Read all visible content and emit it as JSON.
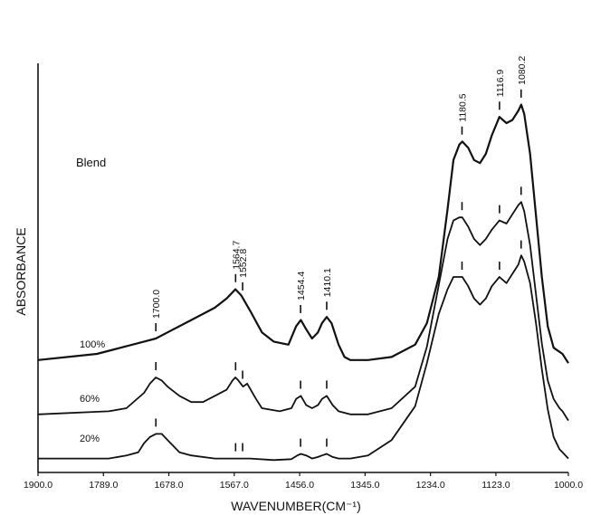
{
  "chart_data": {
    "type": "line",
    "title": "",
    "xlabel": "WAVENUMBER(CM⁻¹)",
    "ylabel": "ABSORBANCE",
    "xlim": [
      1900.0,
      1000.0
    ],
    "x_ticks": [
      "1900.0",
      "1789.0",
      "1678.0",
      "1567.0",
      "1456.0",
      "1345.0",
      "1234.0",
      "1123.0",
      "1000.0"
    ],
    "annotation": "Blend",
    "peak_labels": [
      "1700.0",
      "1564.7",
      "1552.8",
      "1454.4",
      "1410.1",
      "1180.5",
      "1116.9",
      "1080.2"
    ],
    "series": [
      {
        "name": "100%",
        "x": [
          1900,
          1800,
          1760,
          1720,
          1700,
          1680,
          1640,
          1600,
          1580,
          1570,
          1565,
          1555,
          1540,
          1520,
          1500,
          1475,
          1462,
          1454,
          1445,
          1435,
          1425,
          1418,
          1410,
          1402,
          1390,
          1380,
          1370,
          1340,
          1300,
          1260,
          1240,
          1220,
          1205,
          1195,
          1185,
          1180,
          1170,
          1160,
          1150,
          1140,
          1130,
          1117,
          1105,
          1095,
          1085,
          1080,
          1075,
          1065,
          1055,
          1045,
          1035,
          1025,
          1010,
          1000
        ],
        "y": [
          0.03,
          0.05,
          0.07,
          0.09,
          0.1,
          0.12,
          0.16,
          0.2,
          0.23,
          0.25,
          0.26,
          0.24,
          0.19,
          0.12,
          0.09,
          0.08,
          0.14,
          0.16,
          0.13,
          0.1,
          0.12,
          0.15,
          0.17,
          0.15,
          0.08,
          0.04,
          0.03,
          0.03,
          0.04,
          0.08,
          0.15,
          0.3,
          0.52,
          0.68,
          0.73,
          0.74,
          0.72,
          0.68,
          0.67,
          0.7,
          0.76,
          0.82,
          0.8,
          0.81,
          0.84,
          0.86,
          0.83,
          0.7,
          0.5,
          0.3,
          0.14,
          0.07,
          0.05,
          0.02
        ]
      },
      {
        "name": "60%",
        "x": [
          1900,
          1780,
          1750,
          1720,
          1710,
          1700,
          1690,
          1680,
          1660,
          1640,
          1620,
          1600,
          1580,
          1570,
          1565,
          1560,
          1552,
          1545,
          1530,
          1520,
          1490,
          1470,
          1462,
          1454,
          1445,
          1435,
          1425,
          1418,
          1410,
          1400,
          1390,
          1370,
          1340,
          1300,
          1260,
          1240,
          1220,
          1205,
          1195,
          1185,
          1180,
          1170,
          1160,
          1150,
          1140,
          1130,
          1117,
          1105,
          1095,
          1085,
          1080,
          1075,
          1065,
          1055,
          1045,
          1035,
          1025,
          1015,
          1010,
          1000
        ],
        "y": [
          0.03,
          0.04,
          0.05,
          0.1,
          0.13,
          0.15,
          0.14,
          0.12,
          0.09,
          0.07,
          0.07,
          0.09,
          0.11,
          0.14,
          0.15,
          0.14,
          0.12,
          0.13,
          0.08,
          0.05,
          0.04,
          0.05,
          0.08,
          0.09,
          0.06,
          0.05,
          0.06,
          0.08,
          0.09,
          0.06,
          0.04,
          0.03,
          0.03,
          0.05,
          0.12,
          0.25,
          0.45,
          0.6,
          0.66,
          0.67,
          0.67,
          0.64,
          0.6,
          0.58,
          0.6,
          0.63,
          0.66,
          0.65,
          0.68,
          0.71,
          0.72,
          0.69,
          0.58,
          0.42,
          0.26,
          0.14,
          0.08,
          0.05,
          0.04,
          0.01
        ]
      },
      {
        "name": "20%",
        "x": [
          1900,
          1780,
          1750,
          1730,
          1720,
          1710,
          1700,
          1690,
          1680,
          1670,
          1660,
          1640,
          1600,
          1580,
          1560,
          1540,
          1500,
          1470,
          1460,
          1454,
          1445,
          1435,
          1425,
          1418,
          1410,
          1400,
          1390,
          1370,
          1340,
          1300,
          1260,
          1240,
          1220,
          1205,
          1195,
          1185,
          1180,
          1170,
          1160,
          1150,
          1140,
          1130,
          1117,
          1105,
          1095,
          1085,
          1080,
          1075,
          1065,
          1055,
          1045,
          1035,
          1025,
          1015,
          1010,
          1000
        ],
        "y": [
          0.01,
          0.01,
          0.02,
          0.03,
          0.06,
          0.08,
          0.09,
          0.09,
          0.07,
          0.05,
          0.03,
          0.02,
          0.01,
          0.01,
          0.01,
          0.01,
          0.005,
          0.008,
          0.02,
          0.025,
          0.02,
          0.01,
          0.015,
          0.02,
          0.025,
          0.015,
          0.01,
          0.01,
          0.02,
          0.07,
          0.18,
          0.32,
          0.48,
          0.56,
          0.6,
          0.6,
          0.6,
          0.57,
          0.53,
          0.51,
          0.53,
          0.57,
          0.6,
          0.58,
          0.61,
          0.64,
          0.67,
          0.65,
          0.58,
          0.45,
          0.3,
          0.17,
          0.08,
          0.04,
          0.03,
          0.01
        ]
      }
    ],
    "grid": false,
    "legend": "none"
  }
}
